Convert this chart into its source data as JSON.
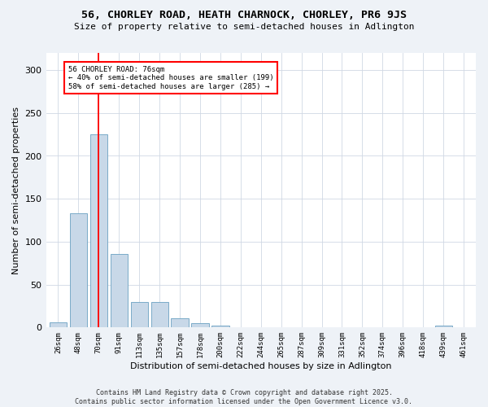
{
  "title_line1": "56, CHORLEY ROAD, HEATH CHARNOCK, CHORLEY, PR6 9JS",
  "title_line2": "Size of property relative to semi-detached houses in Adlington",
  "xlabel": "Distribution of semi-detached houses by size in Adlington",
  "ylabel": "Number of semi-detached properties",
  "bin_labels": [
    "26sqm",
    "48sqm",
    "70sqm",
    "91sqm",
    "113sqm",
    "135sqm",
    "157sqm",
    "178sqm",
    "200sqm",
    "222sqm",
    "244sqm",
    "265sqm",
    "287sqm",
    "309sqm",
    "331sqm",
    "352sqm",
    "374sqm",
    "396sqm",
    "418sqm",
    "439sqm",
    "461sqm"
  ],
  "bar_values": [
    6,
    133,
    225,
    86,
    30,
    30,
    11,
    5,
    2,
    0,
    0,
    0,
    0,
    0,
    0,
    0,
    0,
    0,
    0,
    2,
    0
  ],
  "bar_color": "#c8d8e8",
  "bar_edge_color": "#7aaac8",
  "ylim": [
    0,
    320
  ],
  "yticks": [
    0,
    50,
    100,
    150,
    200,
    250,
    300
  ],
  "vline_x_bin": 2,
  "annotation_text": "56 CHORLEY ROAD: 76sqm\n← 40% of semi-detached houses are smaller (199)\n58% of semi-detached houses are larger (285) →",
  "footer_line1": "Contains HM Land Registry data © Crown copyright and database right 2025.",
  "footer_line2": "Contains public sector information licensed under the Open Government Licence v3.0.",
  "bg_color": "#eef2f7",
  "plot_bg_color": "#ffffff",
  "grid_color": "#d0d8e4"
}
